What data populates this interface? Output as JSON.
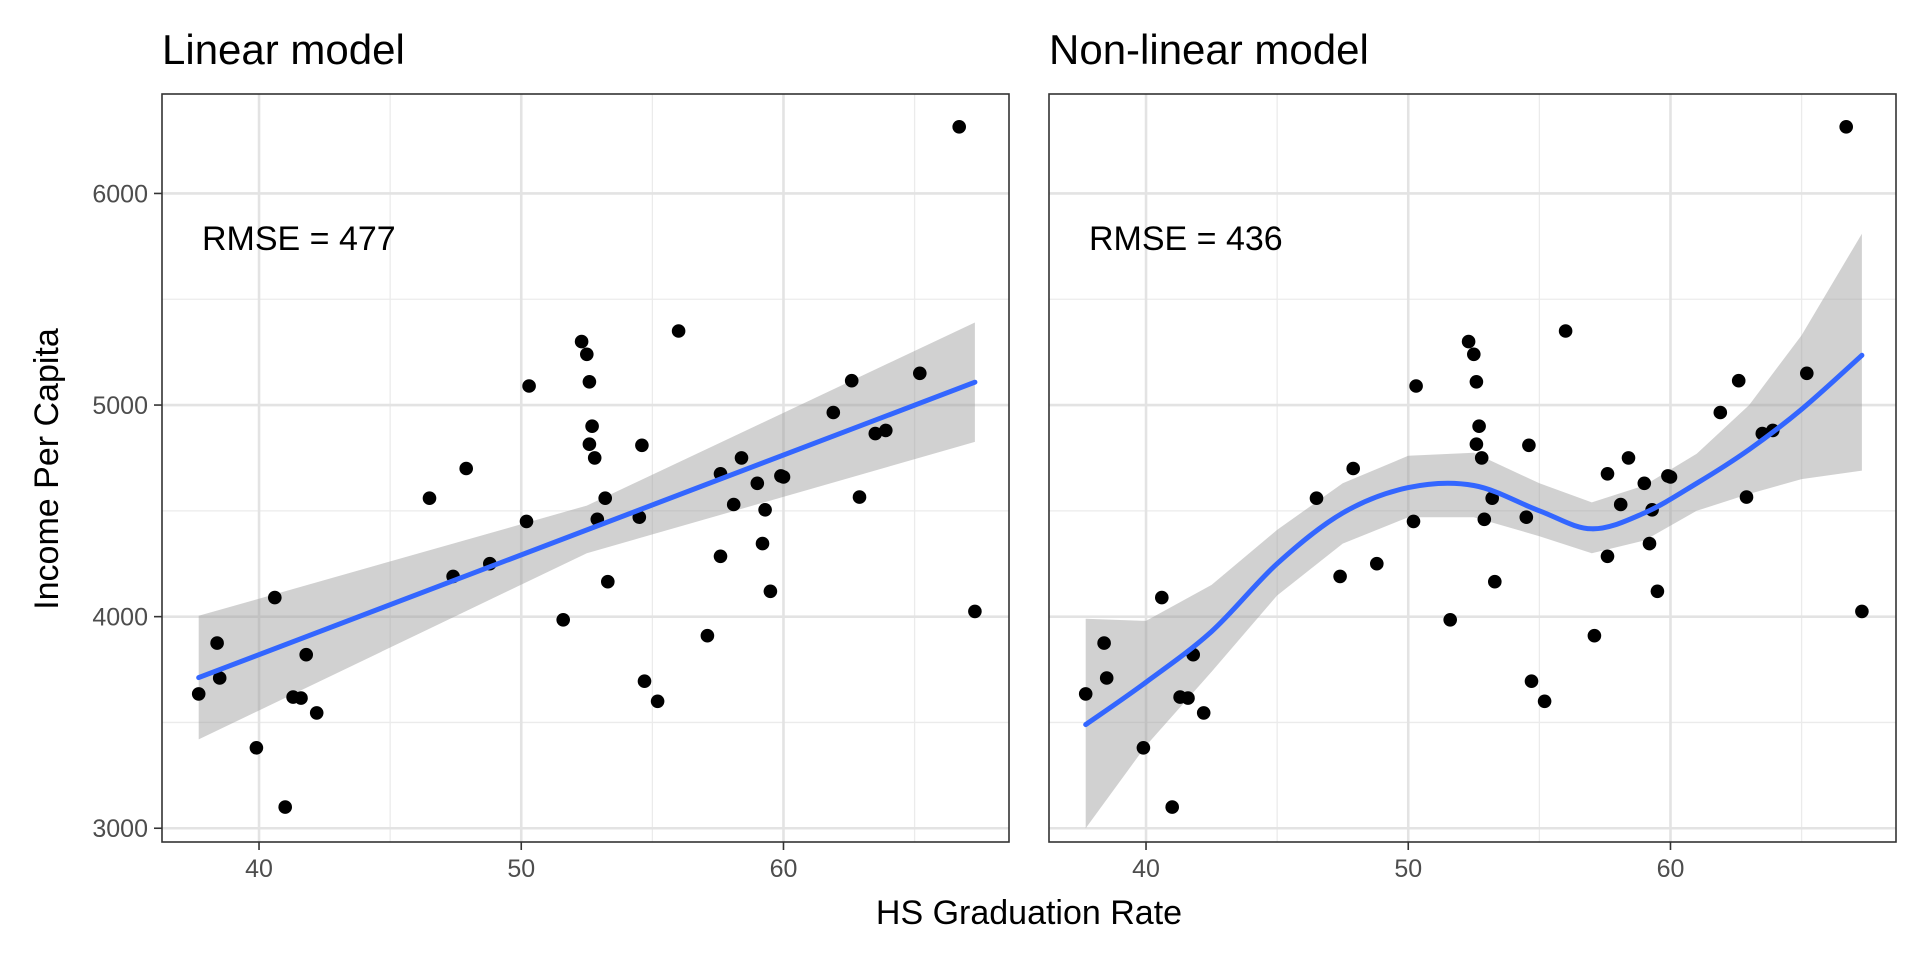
{
  "chart_data": [
    {
      "type": "scatter",
      "title": "Linear model",
      "annotation": "RMSE = 477",
      "xlim": [
        36.3,
        68.6
      ],
      "ylim": [
        2935,
        6470
      ],
      "xticks": [
        40,
        50,
        60
      ],
      "xtick_labels": [
        "40",
        "50",
        "60"
      ],
      "yticks": [
        3000,
        4000,
        5000,
        6000
      ],
      "ytick_labels": [
        "3000",
        "4000",
        "5000",
        "6000"
      ],
      "grid": true,
      "points": [
        [
          37.7,
          3635
        ],
        [
          38.4,
          3875
        ],
        [
          38.5,
          3710
        ],
        [
          39.9,
          3380
        ],
        [
          40.6,
          4090
        ],
        [
          41.0,
          3100
        ],
        [
          41.3,
          3620
        ],
        [
          41.6,
          3615
        ],
        [
          41.8,
          3820
        ],
        [
          42.2,
          3545
        ],
        [
          46.5,
          4560
        ],
        [
          47.4,
          4190
        ],
        [
          47.9,
          4700
        ],
        [
          48.8,
          4250
        ],
        [
          50.2,
          4450
        ],
        [
          50.3,
          5090
        ],
        [
          51.6,
          3985
        ],
        [
          52.3,
          5300
        ],
        [
          52.5,
          5240
        ],
        [
          52.6,
          5110
        ],
        [
          52.6,
          4815
        ],
        [
          52.7,
          4900
        ],
        [
          52.8,
          4750
        ],
        [
          52.9,
          4460
        ],
        [
          53.2,
          4560
        ],
        [
          53.3,
          4165
        ],
        [
          54.5,
          4470
        ],
        [
          54.6,
          4810
        ],
        [
          54.7,
          3695
        ],
        [
          55.2,
          3600
        ],
        [
          56.0,
          5350
        ],
        [
          57.1,
          3910
        ],
        [
          57.6,
          4285
        ],
        [
          57.6,
          4675
        ],
        [
          58.1,
          4530
        ],
        [
          58.4,
          4750
        ],
        [
          59.0,
          4630
        ],
        [
          59.2,
          4345
        ],
        [
          59.3,
          4505
        ],
        [
          59.5,
          4120
        ],
        [
          59.9,
          4665
        ],
        [
          60.0,
          4660
        ],
        [
          61.9,
          4965
        ],
        [
          62.6,
          5115
        ],
        [
          62.9,
          4565
        ],
        [
          63.5,
          4865
        ],
        [
          63.9,
          4880
        ],
        [
          65.2,
          5150
        ],
        [
          66.7,
          6315
        ],
        [
          67.3,
          4025
        ]
      ],
      "fit": {
        "method": "linear",
        "line": [
          [
            37.7,
            3712
          ],
          [
            67.3,
            5108
          ]
        ],
        "band": [
          [
            37.7,
            3420,
            4004
          ],
          [
            52.5,
            4300,
            4525
          ],
          [
            67.3,
            4826,
            5390
          ]
        ]
      },
      "colors": {
        "point": "#000000",
        "fit": "#3366ff",
        "band": "#999999"
      }
    },
    {
      "type": "scatter",
      "title": "Non-linear model",
      "annotation": "RMSE = 436",
      "xlim": [
        36.3,
        68.6
      ],
      "ylim": [
        2935,
        6470
      ],
      "xticks": [
        40,
        50,
        60
      ],
      "xtick_labels": [
        "40",
        "50",
        "60"
      ],
      "yticks": [
        3000,
        4000,
        5000,
        6000
      ],
      "ytick_labels": [],
      "grid": true,
      "points": [
        [
          37.7,
          3635
        ],
        [
          38.4,
          3875
        ],
        [
          38.5,
          3710
        ],
        [
          39.9,
          3380
        ],
        [
          40.6,
          4090
        ],
        [
          41.0,
          3100
        ],
        [
          41.3,
          3620
        ],
        [
          41.6,
          3615
        ],
        [
          41.8,
          3820
        ],
        [
          42.2,
          3545
        ],
        [
          46.5,
          4560
        ],
        [
          47.4,
          4190
        ],
        [
          47.9,
          4700
        ],
        [
          48.8,
          4250
        ],
        [
          50.2,
          4450
        ],
        [
          50.3,
          5090
        ],
        [
          51.6,
          3985
        ],
        [
          52.3,
          5300
        ],
        [
          52.5,
          5240
        ],
        [
          52.6,
          5110
        ],
        [
          52.6,
          4815
        ],
        [
          52.7,
          4900
        ],
        [
          52.8,
          4750
        ],
        [
          52.9,
          4460
        ],
        [
          53.2,
          4560
        ],
        [
          53.3,
          4165
        ],
        [
          54.5,
          4470
        ],
        [
          54.6,
          4810
        ],
        [
          54.7,
          3695
        ],
        [
          55.2,
          3600
        ],
        [
          56.0,
          5350
        ],
        [
          57.1,
          3910
        ],
        [
          57.6,
          4285
        ],
        [
          57.6,
          4675
        ],
        [
          58.1,
          4530
        ],
        [
          58.4,
          4750
        ],
        [
          59.0,
          4630
        ],
        [
          59.2,
          4345
        ],
        [
          59.3,
          4505
        ],
        [
          59.5,
          4120
        ],
        [
          59.9,
          4665
        ],
        [
          60.0,
          4660
        ],
        [
          61.9,
          4965
        ],
        [
          62.6,
          5115
        ],
        [
          62.9,
          4565
        ],
        [
          63.5,
          4865
        ],
        [
          63.9,
          4880
        ],
        [
          65.2,
          5150
        ],
        [
          66.7,
          6315
        ],
        [
          67.3,
          4025
        ]
      ],
      "fit": {
        "method": "smooth",
        "line": [
          [
            37.7,
            3490
          ],
          [
            40.0,
            3690
          ],
          [
            42.5,
            3930
          ],
          [
            45.0,
            4250
          ],
          [
            47.5,
            4490
          ],
          [
            50.0,
            4610
          ],
          [
            52.5,
            4620
          ],
          [
            55.0,
            4500
          ],
          [
            57.0,
            4415
          ],
          [
            59.0,
            4490
          ],
          [
            61.0,
            4630
          ],
          [
            63.0,
            4790
          ],
          [
            65.0,
            4980
          ],
          [
            67.3,
            5235
          ]
        ],
        "band": [
          [
            37.7,
            3000,
            3990
          ],
          [
            40.0,
            3390,
            3980
          ],
          [
            42.5,
            3740,
            4150
          ],
          [
            45.0,
            4100,
            4410
          ],
          [
            47.5,
            4345,
            4630
          ],
          [
            50.0,
            4470,
            4760
          ],
          [
            52.5,
            4470,
            4775
          ],
          [
            55.0,
            4380,
            4630
          ],
          [
            57.0,
            4300,
            4540
          ],
          [
            59.0,
            4360,
            4620
          ],
          [
            61.0,
            4500,
            4770
          ],
          [
            63.0,
            4580,
            5000
          ],
          [
            65.0,
            4650,
            5330
          ],
          [
            67.3,
            4690,
            5810
          ]
        ]
      },
      "colors": {
        "point": "#000000",
        "fit": "#3366ff",
        "band": "#999999"
      }
    }
  ],
  "shared": {
    "xlabel": "HS Graduation Rate",
    "ylabel": "Income Per Capita"
  }
}
